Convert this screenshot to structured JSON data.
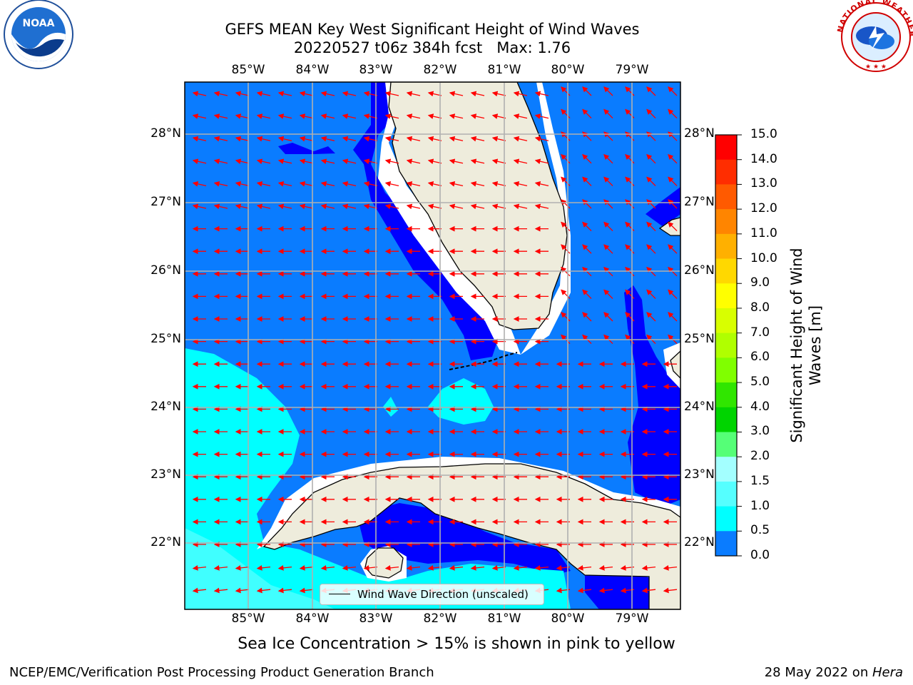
{
  "title": {
    "line1": "GEFS MEAN Key West Significant Height of Wind Waves",
    "line2": "20220527 t06z 384h fcst   Max: 1.76"
  },
  "logos": {
    "left": {
      "name": "noaa-logo",
      "text": "NOAA",
      "ring_text": "NATIONAL OCEANIC AND ATMOSPHERIC ADMINISTRATION · U.S. DEPARTMENT OF COMMERCE"
    },
    "right": {
      "name": "nws-logo",
      "ring_text": "NATIONAL WEATHER SERVICE"
    }
  },
  "map": {
    "lon_labels": [
      "85°W",
      "84°W",
      "83°W",
      "82°W",
      "81°W",
      "80°W",
      "79°W"
    ],
    "lat_labels": [
      "28°N",
      "27°N",
      "26°N",
      "25°N",
      "24°N",
      "23°N",
      "22°N"
    ],
    "land_color": "#eeecdc",
    "arrow_color": "#ff0000",
    "legend": "Wind Wave Direction (unscaled)",
    "field_colors": {
      "0.0-0.5": "#0000ff",
      "0.5-1.0": "#0a7cff",
      "1.0-1.5": "#00ffff",
      "1.5-2.0": "#40ffff"
    }
  },
  "colorbar": {
    "label": "Significant Height of Wind Waves [m]",
    "ticks": [
      "15.0",
      "14.0",
      "13.0",
      "12.0",
      "11.0",
      "10.0",
      "9.0",
      "8.0",
      "7.0",
      "6.0",
      "5.0",
      "4.0",
      "3.0",
      "2.0",
      "1.5",
      "1.0",
      "0.5",
      "0.0"
    ],
    "colors": [
      "#ff0000",
      "#ff2a00",
      "#ff5500",
      "#ff8000",
      "#ffaa00",
      "#ffd500",
      "#ffff00",
      "#d4ff00",
      "#aaff00",
      "#7fff00",
      "#40e000",
      "#00ff00",
      "#00c000",
      "#60ff80",
      "#a0ffff",
      "#40ffff",
      "#00ffff",
      "#0a7cff",
      "#0000ff"
    ]
  },
  "bottom_note": "Sea Ice Concentration > 15% is shown in pink to yellow",
  "footer": {
    "left": "NCEP/EMC/Verification Post Processing Product Generation Branch",
    "right_prefix": "28 May 2022 on ",
    "right_host": "Hera"
  }
}
